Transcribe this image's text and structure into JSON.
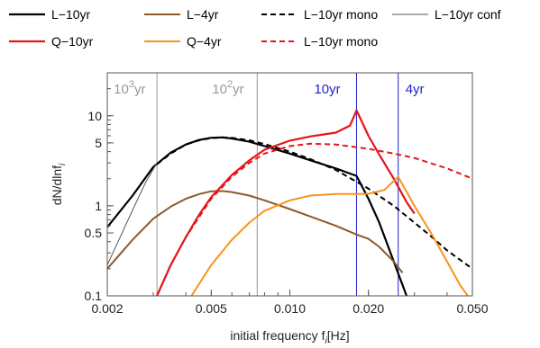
{
  "chart_data": {
    "type": "line",
    "xlabel": "initial frequency f",
    "xlabel_sub": "i",
    "xlabel_unit": "[Hz]",
    "ylabel": "dN/dlnf",
    "ylabel_sub": "i",
    "x_scale": "log",
    "y_scale": "log",
    "xlim": [
      0.002,
      0.05
    ],
    "ylim": [
      0.1,
      30
    ],
    "x_ticks": [
      0.002,
      0.005,
      0.01,
      0.02,
      0.05
    ],
    "x_tick_labels": [
      "0.002",
      "0.005",
      "0.010",
      "0.020",
      "0.050"
    ],
    "y_ticks": [
      0.1,
      0.5,
      1,
      5,
      10
    ],
    "y_tick_labels": [
      "0.1",
      "0.5",
      "1",
      "5",
      "10"
    ],
    "grid": false,
    "legend_placement": "top",
    "legend": [
      {
        "label": "L−10yr",
        "color": "#000000",
        "dash": "solid",
        "width": 2.2
      },
      {
        "label": "L−4yr",
        "color": "#8B5A2B",
        "dash": "solid",
        "width": 2
      },
      {
        "label": "L−10yr mono",
        "color": "#000000",
        "dash": "dashed",
        "width": 2
      },
      {
        "label": "L−10yr conf",
        "color": "#555555",
        "dash": "solid",
        "width": 1
      },
      {
        "label": "Q−10yr",
        "color": "#E3161B",
        "dash": "solid",
        "width": 2.2
      },
      {
        "label": "Q−4yr",
        "color": "#F7931E",
        "dash": "solid",
        "width": 2
      },
      {
        "label": "L−10yr mono",
        "color": "#E3161B",
        "dash": "dashed",
        "width": 2
      }
    ],
    "annotations": [
      {
        "base": "10",
        "sup": "3",
        "unit": "yr",
        "x": 0.0031,
        "color": "#999999"
      },
      {
        "base": "10",
        "sup": "2",
        "unit": "yr",
        "x": 0.0075,
        "color": "#999999"
      },
      {
        "base": "",
        "sup": "",
        "unit": "10yr",
        "x": 0.018,
        "color": "#1F1FCC"
      },
      {
        "base": "",
        "sup": "",
        "unit": "4yr",
        "x": 0.026,
        "color": "#1F1FCC"
      }
    ],
    "vlines": [
      {
        "x": 0.0031,
        "color": "#999999"
      },
      {
        "x": 0.0075,
        "color": "#999999"
      },
      {
        "x": 0.018,
        "color": "#1F1FCC"
      },
      {
        "x": 0.026,
        "color": "#1F1FCC"
      }
    ],
    "series": [
      {
        "legend_index": 0,
        "x": [
          0.002,
          0.0025,
          0.003,
          0.0035,
          0.004,
          0.0045,
          0.005,
          0.0055,
          0.006,
          0.007,
          0.008,
          0.01,
          0.012,
          0.015,
          0.018,
          0.02,
          0.022,
          0.025,
          0.028
        ],
        "y": [
          0.58,
          1.3,
          2.7,
          3.9,
          4.8,
          5.4,
          5.7,
          5.75,
          5.6,
          5.15,
          4.6,
          3.8,
          3.2,
          2.6,
          2.15,
          1.2,
          0.65,
          0.24,
          0.1
        ]
      },
      {
        "legend_index": 3,
        "x": [
          0.002,
          0.0022,
          0.0025,
          0.0028,
          0.0031
        ],
        "y": [
          0.22,
          0.4,
          0.9,
          1.8,
          3.0
        ]
      },
      {
        "legend_index": 2,
        "x": [
          0.0031,
          0.0035,
          0.004,
          0.0045,
          0.005,
          0.0055,
          0.006,
          0.007,
          0.008,
          0.01,
          0.012,
          0.015,
          0.018,
          0.02,
          0.025,
          0.03,
          0.035,
          0.04,
          0.045,
          0.05
        ],
        "y": [
          2.9,
          3.8,
          4.8,
          5.35,
          5.65,
          5.75,
          5.7,
          5.35,
          4.85,
          4.0,
          3.3,
          2.5,
          1.85,
          1.55,
          1.0,
          0.65,
          0.45,
          0.32,
          0.25,
          0.2
        ]
      },
      {
        "legend_index": 1,
        "x": [
          0.002,
          0.0025,
          0.003,
          0.0035,
          0.004,
          0.0045,
          0.005,
          0.0055,
          0.006,
          0.007,
          0.008,
          0.01,
          0.012,
          0.015,
          0.018,
          0.02,
          0.022,
          0.025,
          0.027
        ],
        "y": [
          0.2,
          0.42,
          0.72,
          0.98,
          1.2,
          1.35,
          1.45,
          1.46,
          1.42,
          1.3,
          1.15,
          0.92,
          0.76,
          0.6,
          0.48,
          0.43,
          0.35,
          0.24,
          0.18
        ]
      },
      {
        "legend_index": 4,
        "x": [
          0.0031,
          0.0035,
          0.004,
          0.0045,
          0.005,
          0.006,
          0.007,
          0.008,
          0.01,
          0.012,
          0.015,
          0.017,
          0.018,
          0.02,
          0.022,
          0.025,
          0.028,
          0.03
        ],
        "y": [
          0.1,
          0.22,
          0.45,
          0.8,
          1.25,
          2.2,
          3.2,
          4.2,
          5.3,
          5.9,
          6.5,
          7.8,
          11.5,
          6.0,
          3.7,
          2.0,
          1.1,
          0.82
        ]
      },
      {
        "legend_index": 6,
        "x": [
          0.0031,
          0.0035,
          0.004,
          0.005,
          0.006,
          0.007,
          0.008,
          0.01,
          0.012,
          0.015,
          0.02,
          0.025,
          0.03,
          0.04,
          0.05
        ],
        "y": [
          0.1,
          0.22,
          0.45,
          1.2,
          2.1,
          3.0,
          3.8,
          4.6,
          4.9,
          4.8,
          4.3,
          3.8,
          3.4,
          2.6,
          2.0
        ]
      },
      {
        "legend_index": 5,
        "x": [
          0.0042,
          0.005,
          0.006,
          0.007,
          0.008,
          0.01,
          0.012,
          0.015,
          0.018,
          0.02,
          0.023,
          0.026,
          0.03,
          0.035,
          0.04,
          0.045,
          0.048
        ],
        "y": [
          0.1,
          0.22,
          0.42,
          0.65,
          0.88,
          1.15,
          1.3,
          1.35,
          1.35,
          1.36,
          1.5,
          2.1,
          1.0,
          0.48,
          0.24,
          0.13,
          0.1
        ]
      }
    ]
  }
}
